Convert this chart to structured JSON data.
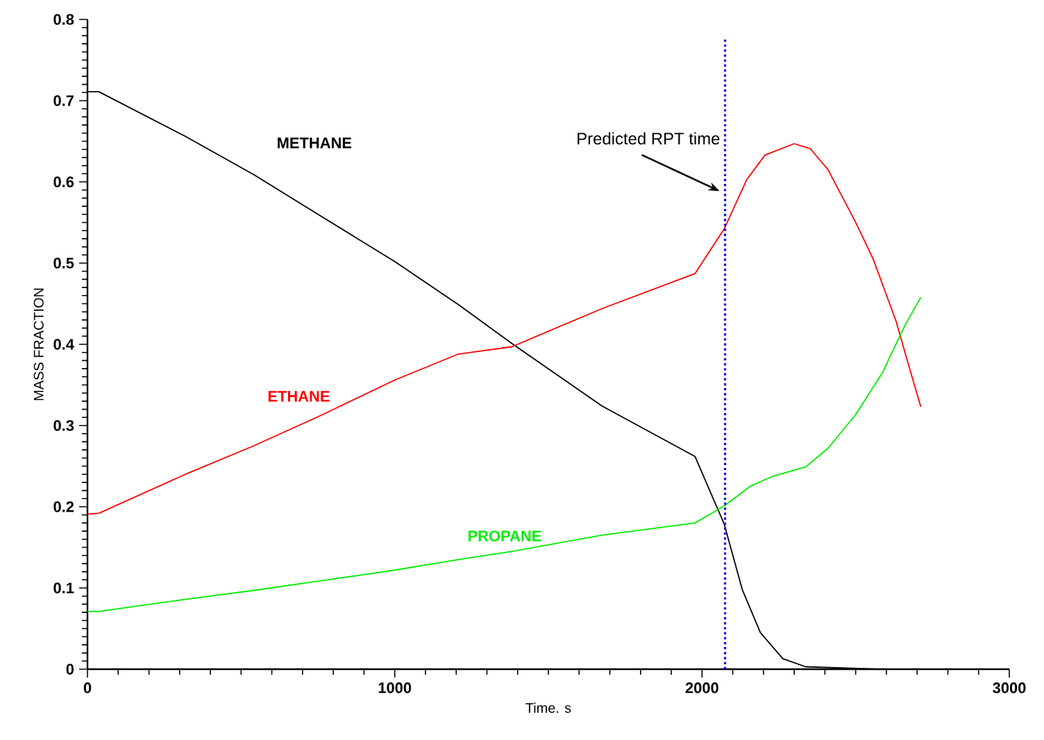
{
  "chart_data": {
    "type": "line",
    "xlabel": "Time. s",
    "ylabel": "MASS FRACTION",
    "xlim": [
      0,
      3000
    ],
    "ylim": [
      0,
      0.8
    ],
    "xticks": [
      0,
      1000,
      2000,
      3000
    ],
    "yticks": [
      0,
      0.1,
      0.2,
      0.3,
      0.4,
      0.5,
      0.6,
      0.7,
      0.8
    ],
    "grid": false,
    "legend": false,
    "marker": "none",
    "line_style": "solid",
    "series": [
      {
        "name": "METHANE",
        "color": "#000000",
        "x": [
          0,
          37,
          319,
          541,
          763,
          1000,
          1207,
          1381,
          1675,
          1977,
          2072,
          2131,
          2190,
          2263,
          2337,
          2572
        ],
        "values": [
          0.711,
          0.711,
          0.656,
          0.609,
          0.557,
          0.502,
          0.449,
          0.401,
          0.324,
          0.262,
          0.179,
          0.098,
          0.045,
          0.013,
          0.003,
          0.0
        ]
      },
      {
        "name": "ETHANE",
        "color": "#ff0000",
        "x": [
          0,
          37,
          319,
          541,
          763,
          1000,
          1207,
          1381,
          1675,
          1977,
          2072,
          2146,
          2205,
          2300,
          2352,
          2410,
          2499,
          2557,
          2631,
          2675,
          2712
        ],
        "values": [
          0.191,
          0.192,
          0.24,
          0.275,
          0.313,
          0.356,
          0.388,
          0.397,
          0.444,
          0.487,
          0.542,
          0.603,
          0.633,
          0.647,
          0.641,
          0.615,
          0.551,
          0.505,
          0.429,
          0.371,
          0.323
        ]
      },
      {
        "name": "PROPANE",
        "color": "#00ee00",
        "x": [
          0,
          37,
          319,
          541,
          763,
          1000,
          1207,
          1381,
          1675,
          1977,
          2072,
          2160,
          2234,
          2337,
          2410,
          2499,
          2587,
          2660,
          2712
        ],
        "values": [
          0.071,
          0.071,
          0.086,
          0.097,
          0.109,
          0.122,
          0.135,
          0.145,
          0.165,
          0.18,
          0.201,
          0.226,
          0.238,
          0.249,
          0.272,
          0.313,
          0.365,
          0.423,
          0.458
        ]
      }
    ],
    "ref_lines": [
      {
        "axis": "x",
        "value": 2075,
        "label": "Predicted RPT time",
        "color": "#0000ff",
        "line_style": "dotted"
      }
    ]
  }
}
